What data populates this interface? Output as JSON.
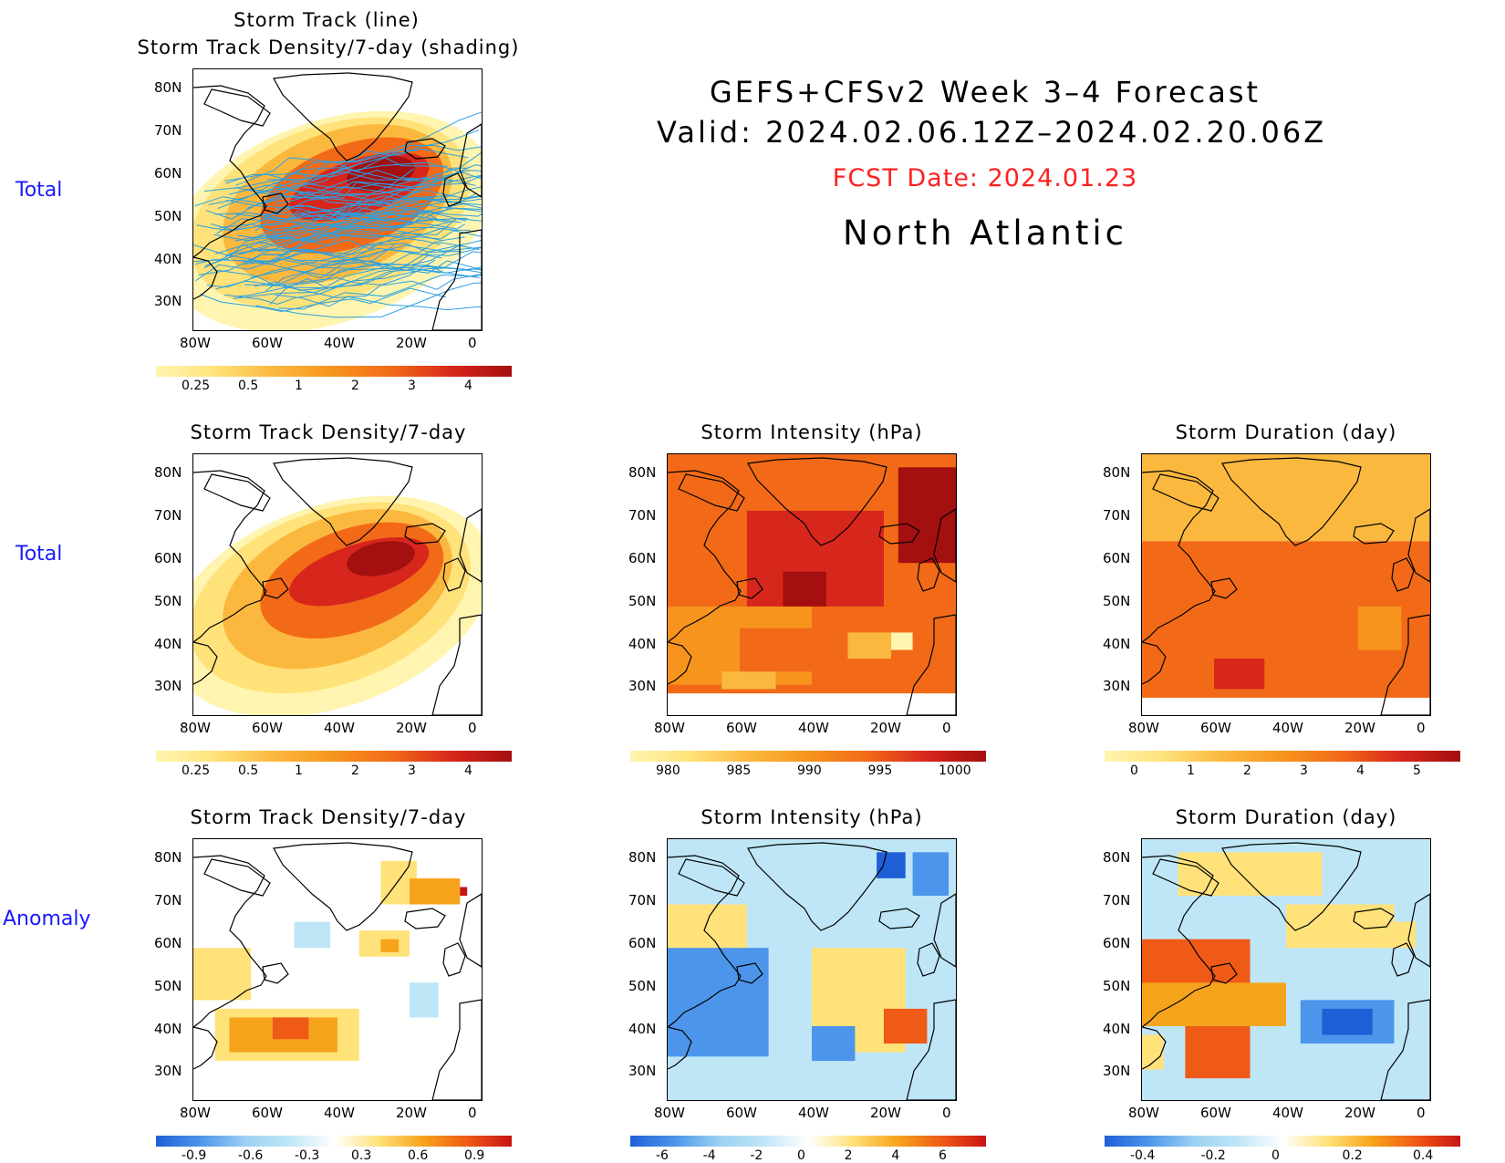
{
  "header": {
    "line1": "GEFS+CFSv2 Week 3–4 Forecast",
    "line2": "Valid: 2024.02.06.12Z–2024.02.20.06Z",
    "fcst": "FCST Date: 2024.01.23",
    "region": "North Atlantic",
    "fcst_color": "#ff2020"
  },
  "row_labels": {
    "row1": "Total",
    "row2": "Total",
    "row3": "Anomaly"
  },
  "axes": {
    "lon": [
      "80W",
      "60W",
      "40W",
      "20W",
      "0"
    ],
    "lat": [
      "80N",
      "70N",
      "60N",
      "50N",
      "40N",
      "30N"
    ]
  },
  "panels": {
    "p1": {
      "title1": "Storm Track (line)",
      "title2": "Storm Track Density/7-day (shading)",
      "cb": [
        "0.25",
        "0.5",
        "1",
        "2",
        "3",
        "4"
      ]
    },
    "p2": {
      "title": "Storm Track Density/7-day",
      "cb": [
        "0.25",
        "0.5",
        "1",
        "2",
        "3",
        "4"
      ]
    },
    "p3": {
      "title": "Storm Intensity (hPa)",
      "cb": [
        "980",
        "985",
        "990",
        "995",
        "1000"
      ]
    },
    "p4": {
      "title": "Storm Duration (day)",
      "cb": [
        "0",
        "1",
        "2",
        "3",
        "4",
        "5"
      ]
    },
    "p5": {
      "title": "Storm Track Density/7-day",
      "cb": [
        "-0.9",
        "-0.6",
        "-0.3",
        "0.3",
        "0.6",
        "0.9"
      ]
    },
    "p6": {
      "title": "Storm Intensity (hPa)",
      "cb": [
        "-6",
        "-4",
        "-2",
        "0",
        "2",
        "4",
        "6"
      ]
    },
    "p7": {
      "title": "Storm Duration (day)",
      "cb": [
        "-0.4",
        "-0.2",
        "0",
        "0.2",
        "0.4"
      ]
    }
  },
  "colors": {
    "warm": [
      "#fff5b0",
      "#ffe27a",
      "#fbb83f",
      "#f7941d",
      "#f26a18",
      "#d7261c",
      "#a40f0f"
    ],
    "anom": [
      "#1f5fd6",
      "#4c95ea",
      "#9bd1f2",
      "#bfe6f7",
      "#ffffff",
      "#ffe27a",
      "#f7a41d",
      "#ef5a16",
      "#c81414"
    ],
    "track": "#2ba0e0"
  }
}
